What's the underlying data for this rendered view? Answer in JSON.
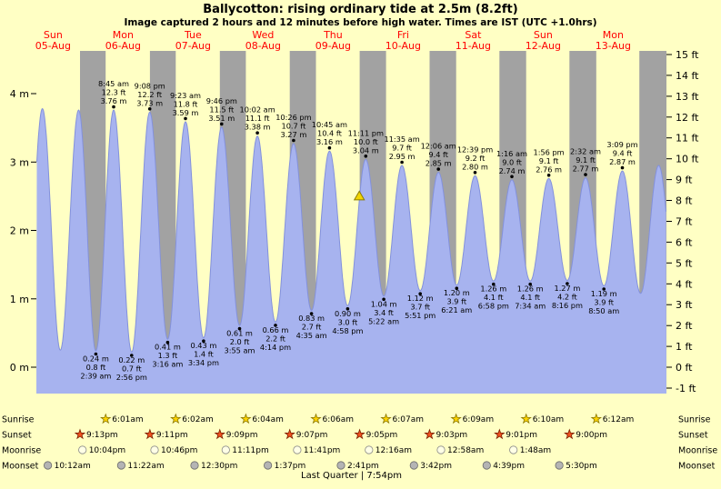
{
  "title": "Ballycotton: rising ordinary tide at 2.5m (8.2ft)",
  "subtitle": "Image captured 2 hours and 12 minutes before high water. Times are IST (UTC +1.0hrs)",
  "colors": {
    "page_bg": "#ffffc4",
    "night_band": "#a2a2a2",
    "tide_fill": "#a7b3ef",
    "tide_stroke": "#8391dc",
    "day_label": "#ff0000",
    "sunrise_star": "#ffd400",
    "sunrise_star_stroke": "#897700",
    "sunset_star": "#f4511e",
    "sunset_star_stroke": "#7a1d00",
    "moonrise_fill": "#ffffe6",
    "moonrise_stroke": "#8a8a8a",
    "moonset_fill": "#b4b4b4",
    "moonset_stroke": "#6b6b6b",
    "marker_fill": "#f2d500",
    "marker_stroke": "#8a7c00"
  },
  "chart_data": {
    "type": "area",
    "title": "Ballycotton tide height curve, Sun 05-Aug to Mon 13-Aug",
    "x_axis": {
      "unit": "hours from Sun 05-Aug 00:00 IST",
      "range": [
        6.26,
        222.26
      ],
      "days": [
        {
          "name": "Sun",
          "date": "05-Aug",
          "noon_t": 12
        },
        {
          "name": "Mon",
          "date": "06-Aug",
          "noon_t": 36
        },
        {
          "name": "Tue",
          "date": "07-Aug",
          "noon_t": 60
        },
        {
          "name": "Wed",
          "date": "08-Aug",
          "noon_t": 84
        },
        {
          "name": "Thu",
          "date": "09-Aug",
          "noon_t": 108
        },
        {
          "name": "Fri",
          "date": "10-Aug",
          "noon_t": 132
        },
        {
          "name": "Sat",
          "date": "11-Aug",
          "noon_t": 156
        },
        {
          "name": "Sun",
          "date": "12-Aug",
          "noon_t": 180
        },
        {
          "name": "Mon",
          "date": "13-Aug",
          "noon_t": 204
        }
      ]
    },
    "y_axis_left": {
      "unit": "m",
      "ticks": [
        0,
        1,
        2,
        3,
        4
      ],
      "range": [
        -0.385,
        4.625
      ]
    },
    "y_axis_right": {
      "unit": "ft",
      "ticks": [
        -1,
        0,
        1,
        2,
        3,
        4,
        5,
        6,
        7,
        8,
        9,
        10,
        11,
        12,
        13,
        14,
        15
      ]
    },
    "night_bands": [
      [
        21.217,
        30.017
      ],
      [
        45.183,
        54.033
      ],
      [
        69.15,
        78.067
      ],
      [
        93.117,
        102.1
      ],
      [
        117.083,
        126.117
      ],
      [
        141.05,
        150.15
      ],
      [
        165.017,
        174.167
      ],
      [
        189.0,
        198.2
      ],
      [
        212.967,
        222.26
      ]
    ],
    "tide_extremes": [
      {
        "t": 2.2,
        "m": 0.27,
        "type": "L"
      },
      {
        "t": 8.33,
        "m": 3.78,
        "type": "H"
      },
      {
        "t": 14.47,
        "m": 0.25,
        "type": "L"
      },
      {
        "t": 20.75,
        "m": 3.76,
        "type": "H"
      },
      {
        "t": 26.65,
        "m": 0.24,
        "type": "L",
        "lines": [
          "0.24 m",
          "0.8 ft",
          "2:39 am"
        ]
      },
      {
        "t": 32.75,
        "m": 3.76,
        "type": "H",
        "lines": [
          "8:45 am",
          "12.3 ft",
          "3.76 m"
        ]
      },
      {
        "t": 38.93,
        "m": 0.22,
        "type": "L",
        "lines": [
          "0.22 m",
          "0.7 ft",
          "2:56 pm"
        ]
      },
      {
        "t": 45.13,
        "m": 3.73,
        "type": "H",
        "lines": [
          "9:08 pm",
          "12.2 ft",
          "3.73 m"
        ]
      },
      {
        "t": 51.27,
        "m": 0.41,
        "type": "L",
        "lines": [
          "0.41 m",
          "1.3 ft",
          "3:16 am"
        ]
      },
      {
        "t": 57.38,
        "m": 3.59,
        "type": "H",
        "lines": [
          "9:23 am",
          "11.8 ft",
          "3.59 m"
        ]
      },
      {
        "t": 63.57,
        "m": 0.43,
        "type": "L",
        "lines": [
          "0.43 m",
          "1.4 ft",
          "3:34 pm"
        ]
      },
      {
        "t": 69.77,
        "m": 3.51,
        "type": "H",
        "lines": [
          "9:46 pm",
          "11.5 ft",
          "3.51 m"
        ]
      },
      {
        "t": 75.92,
        "m": 0.61,
        "type": "L",
        "lines": [
          "0.61 m",
          "2.0 ft",
          "3:55 am"
        ]
      },
      {
        "t": 82.03,
        "m": 3.38,
        "type": "H",
        "lines": [
          "10:02 am",
          "11.1 ft",
          "3.38 m"
        ]
      },
      {
        "t": 88.23,
        "m": 0.66,
        "type": "L",
        "lines": [
          "0.66 m",
          "2.2 ft",
          "4:14 pm"
        ]
      },
      {
        "t": 94.43,
        "m": 3.27,
        "type": "H",
        "lines": [
          "10:26 pm",
          "10.7 ft",
          "3.27 m"
        ]
      },
      {
        "t": 100.58,
        "m": 0.83,
        "type": "L",
        "lines": [
          "0.83 m",
          "2.7 ft",
          "4:35 am"
        ]
      },
      {
        "t": 106.75,
        "m": 3.16,
        "type": "H",
        "lines": [
          "10:45 am",
          "10.4 ft",
          "3.16 m"
        ]
      },
      {
        "t": 112.97,
        "m": 0.9,
        "type": "L",
        "lines": [
          "0.90 m",
          "3.0 ft",
          "4:58 pm"
        ]
      },
      {
        "t": 119.18,
        "m": 3.04,
        "type": "H",
        "lines": [
          "11:11 pm",
          "10.0 ft",
          "3.04 m"
        ]
      },
      {
        "t": 125.37,
        "m": 1.04,
        "type": "L",
        "lines": [
          "1.04 m",
          "3.4 ft",
          "5:22 am"
        ]
      },
      {
        "t": 131.58,
        "m": 2.95,
        "type": "H",
        "lines": [
          "11:35 am",
          "9.7 ft",
          "2.95 m"
        ]
      },
      {
        "t": 137.85,
        "m": 1.12,
        "type": "L",
        "lines": [
          "1.12 m",
          "3.7 ft",
          "5:51 pm"
        ]
      },
      {
        "t": 144.1,
        "m": 2.85,
        "type": "H",
        "lines": [
          "12:06 am",
          "9.4 ft",
          "2.85 m"
        ]
      },
      {
        "t": 150.35,
        "m": 1.2,
        "type": "L",
        "lines": [
          "1.20 m",
          "3.9 ft",
          "6:21 am"
        ]
      },
      {
        "t": 156.65,
        "m": 2.8,
        "type": "H",
        "lines": [
          "12:39 pm",
          "9.2 ft",
          "2.80 m"
        ]
      },
      {
        "t": 162.97,
        "m": 1.26,
        "type": "L",
        "lines": [
          "1.26 m",
          "4.1 ft",
          "6:58 pm"
        ]
      },
      {
        "t": 169.27,
        "m": 2.74,
        "type": "H",
        "lines": [
          "1:16 am",
          "9.0 ft",
          "2.74 m"
        ]
      },
      {
        "t": 175.57,
        "m": 1.26,
        "type": "L",
        "lines": [
          "1.26 m",
          "4.1 ft",
          "7:34 am"
        ]
      },
      {
        "t": 181.93,
        "m": 2.76,
        "type": "H",
        "lines": [
          "1:56 pm",
          "9.1 ft",
          "2.76 m"
        ]
      },
      {
        "t": 188.27,
        "m": 1.27,
        "type": "L",
        "lines": [
          "1.27 m",
          "4.2 ft",
          "8:16 pm"
        ]
      },
      {
        "t": 194.53,
        "m": 2.77,
        "type": "H",
        "lines": [
          "2:32 am",
          "9.1 ft",
          "2.77 m"
        ]
      },
      {
        "t": 200.83,
        "m": 1.19,
        "type": "L",
        "lines": [
          "1.19 m",
          "3.9 ft",
          "8:50 am"
        ]
      },
      {
        "t": 207.15,
        "m": 2.87,
        "type": "H",
        "lines": [
          "3:09 pm",
          "9.4 ft",
          "2.87 m"
        ]
      },
      {
        "t": 213.4,
        "m": 1.08,
        "type": "L"
      },
      {
        "t": 219.6,
        "m": 2.95,
        "type": "H"
      },
      {
        "t": 225.8,
        "m": 1.05,
        "type": "L"
      }
    ],
    "marker": {
      "t": 116.98,
      "m": 2.5
    }
  },
  "astro": {
    "rows": [
      {
        "name": "Sunrise",
        "icon": "sunrise-star",
        "events": [
          {
            "t": 30.017,
            "time": "6:01am"
          },
          {
            "t": 54.033,
            "time": "6:02am"
          },
          {
            "t": 78.067,
            "time": "6:04am"
          },
          {
            "t": 102.1,
            "time": "6:06am"
          },
          {
            "t": 126.117,
            "time": "6:07am"
          },
          {
            "t": 150.15,
            "time": "6:09am"
          },
          {
            "t": 174.167,
            "time": "6:10am"
          },
          {
            "t": 198.2,
            "time": "6:12am"
          }
        ]
      },
      {
        "name": "Sunset",
        "icon": "sunset-star",
        "events": [
          {
            "t": 21.217,
            "time": "9:13pm"
          },
          {
            "t": 45.183,
            "time": "9:11pm"
          },
          {
            "t": 69.15,
            "time": "9:09pm"
          },
          {
            "t": 93.117,
            "time": "9:07pm"
          },
          {
            "t": 117.083,
            "time": "9:05pm"
          },
          {
            "t": 141.05,
            "time": "9:03pm"
          },
          {
            "t": 165.017,
            "time": "9:01pm"
          },
          {
            "t": 189.0,
            "time": "9:00pm"
          }
        ]
      },
      {
        "name": "Moonrise",
        "icon": "moonrise-circle",
        "events": [
          {
            "t": 22.067,
            "time": "10:04pm"
          },
          {
            "t": 46.767,
            "time": "10:46pm"
          },
          {
            "t": 71.183,
            "time": "11:11pm"
          },
          {
            "t": 95.683,
            "time": "11:41pm"
          },
          {
            "t": 120.267,
            "time": "12:16am"
          },
          {
            "t": 144.967,
            "time": "12:58am"
          },
          {
            "t": 169.8,
            "time": "1:48am"
          }
        ]
      },
      {
        "name": "Moonset",
        "icon": "moonset-circle",
        "events": [
          {
            "t": 10.2,
            "time": "10:12am"
          },
          {
            "t": 35.367,
            "time": "11:22am"
          },
          {
            "t": 60.5,
            "time": "12:30pm"
          },
          {
            "t": 85.617,
            "time": "1:37pm"
          },
          {
            "t": 110.683,
            "time": "2:41pm"
          },
          {
            "t": 135.7,
            "time": "3:42pm"
          },
          {
            "t": 160.65,
            "time": "4:39pm"
          },
          {
            "t": 185.5,
            "time": "5:30pm"
          }
        ]
      }
    ],
    "footer": "Last Quarter | 7:54pm"
  }
}
